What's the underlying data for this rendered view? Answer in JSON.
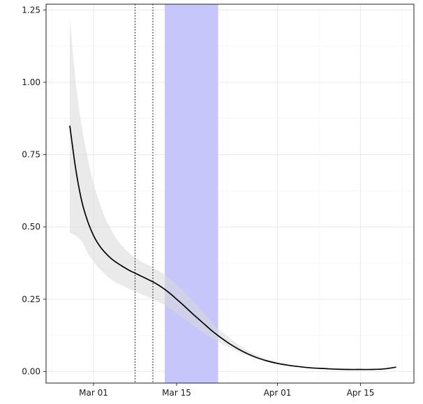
{
  "chart_data": {
    "type": "line",
    "title": "",
    "xlabel": "",
    "ylabel": "",
    "x_tick_labels": [
      {
        "date": "2020-03-01",
        "label": "Mar 01"
      },
      {
        "date": "2020-03-15",
        "label": "Mar 15"
      },
      {
        "date": "2020-04-01",
        "label": "Apr 01"
      },
      {
        "date": "2020-04-15",
        "label": "Apr 15"
      }
    ],
    "y_ticks": [
      0,
      0.25,
      0.5,
      0.75,
      1.0,
      1.25
    ],
    "y_tick_labels": [
      "0.00",
      "0.25",
      "0.50",
      "0.75",
      "1.00",
      "1.25"
    ],
    "xlim": [
      "2020-02-22",
      "2020-04-24"
    ],
    "ylim": [
      -0.04,
      1.27
    ],
    "grid": true,
    "series": [
      {
        "color": "#000000",
        "band_color": "#d9d9d9",
        "x": [
          "2020-02-26",
          "2020-02-27",
          "2020-02-28",
          "2020-02-29",
          "2020-03-01",
          "2020-03-02",
          "2020-03-03",
          "2020-03-04",
          "2020-03-05",
          "2020-03-06",
          "2020-03-07",
          "2020-03-08",
          "2020-03-09",
          "2020-03-10",
          "2020-03-11",
          "2020-03-12",
          "2020-03-13",
          "2020-03-14",
          "2020-03-15",
          "2020-03-16",
          "2020-03-17",
          "2020-03-18",
          "2020-03-19",
          "2020-03-20",
          "2020-03-21",
          "2020-03-22",
          "2020-03-23",
          "2020-03-24",
          "2020-03-26",
          "2020-03-28",
          "2020-03-30",
          "2020-04-01",
          "2020-04-03",
          "2020-04-05",
          "2020-04-07",
          "2020-04-09",
          "2020-04-11",
          "2020-04-13",
          "2020-04-15",
          "2020-04-17",
          "2020-04-19",
          "2020-04-21"
        ],
        "values": [
          0.85,
          0.7,
          0.59,
          0.52,
          0.47,
          0.435,
          0.41,
          0.39,
          0.375,
          0.362,
          0.35,
          0.34,
          0.33,
          0.32,
          0.31,
          0.298,
          0.284,
          0.268,
          0.25,
          0.232,
          0.213,
          0.194,
          0.176,
          0.158,
          0.14,
          0.124,
          0.109,
          0.095,
          0.071,
          0.052,
          0.038,
          0.028,
          0.021,
          0.016,
          0.012,
          0.01,
          0.008,
          0.007,
          0.007,
          0.007,
          0.009,
          0.015
        ],
        "lower": [
          0.48,
          0.47,
          0.45,
          0.41,
          0.38,
          0.355,
          0.335,
          0.318,
          0.305,
          0.295,
          0.285,
          0.276,
          0.268,
          0.259,
          0.25,
          0.24,
          0.229,
          0.216,
          0.201,
          0.186,
          0.171,
          0.156,
          0.142,
          0.128,
          0.115,
          0.103,
          0.092,
          0.082,
          0.063,
          0.048,
          0.036,
          0.027,
          0.02,
          0.015,
          0.011,
          0.009,
          0.007,
          0.006,
          0.006,
          0.006,
          0.008,
          0.013
        ],
        "upper": [
          1.22,
          1.0,
          0.85,
          0.74,
          0.65,
          0.585,
          0.53,
          0.49,
          0.455,
          0.43,
          0.41,
          0.395,
          0.38,
          0.37,
          0.36,
          0.348,
          0.335,
          0.318,
          0.3,
          0.281,
          0.26,
          0.237,
          0.214,
          0.192,
          0.17,
          0.149,
          0.131,
          0.114,
          0.085,
          0.062,
          0.045,
          0.033,
          0.024,
          0.018,
          0.013,
          0.011,
          0.009,
          0.008,
          0.008,
          0.008,
          0.01,
          0.017
        ]
      }
    ],
    "vertical_lines": [
      {
        "x": "2020-03-08",
        "style": "dotted",
        "color": "#000000"
      },
      {
        "x": "2020-03-11",
        "style": "dotted",
        "color": "#000000"
      }
    ],
    "shaded_regions": [
      {
        "start": "2020-03-13",
        "end": "2020-03-22",
        "color": "#c6c6fb"
      }
    ]
  }
}
